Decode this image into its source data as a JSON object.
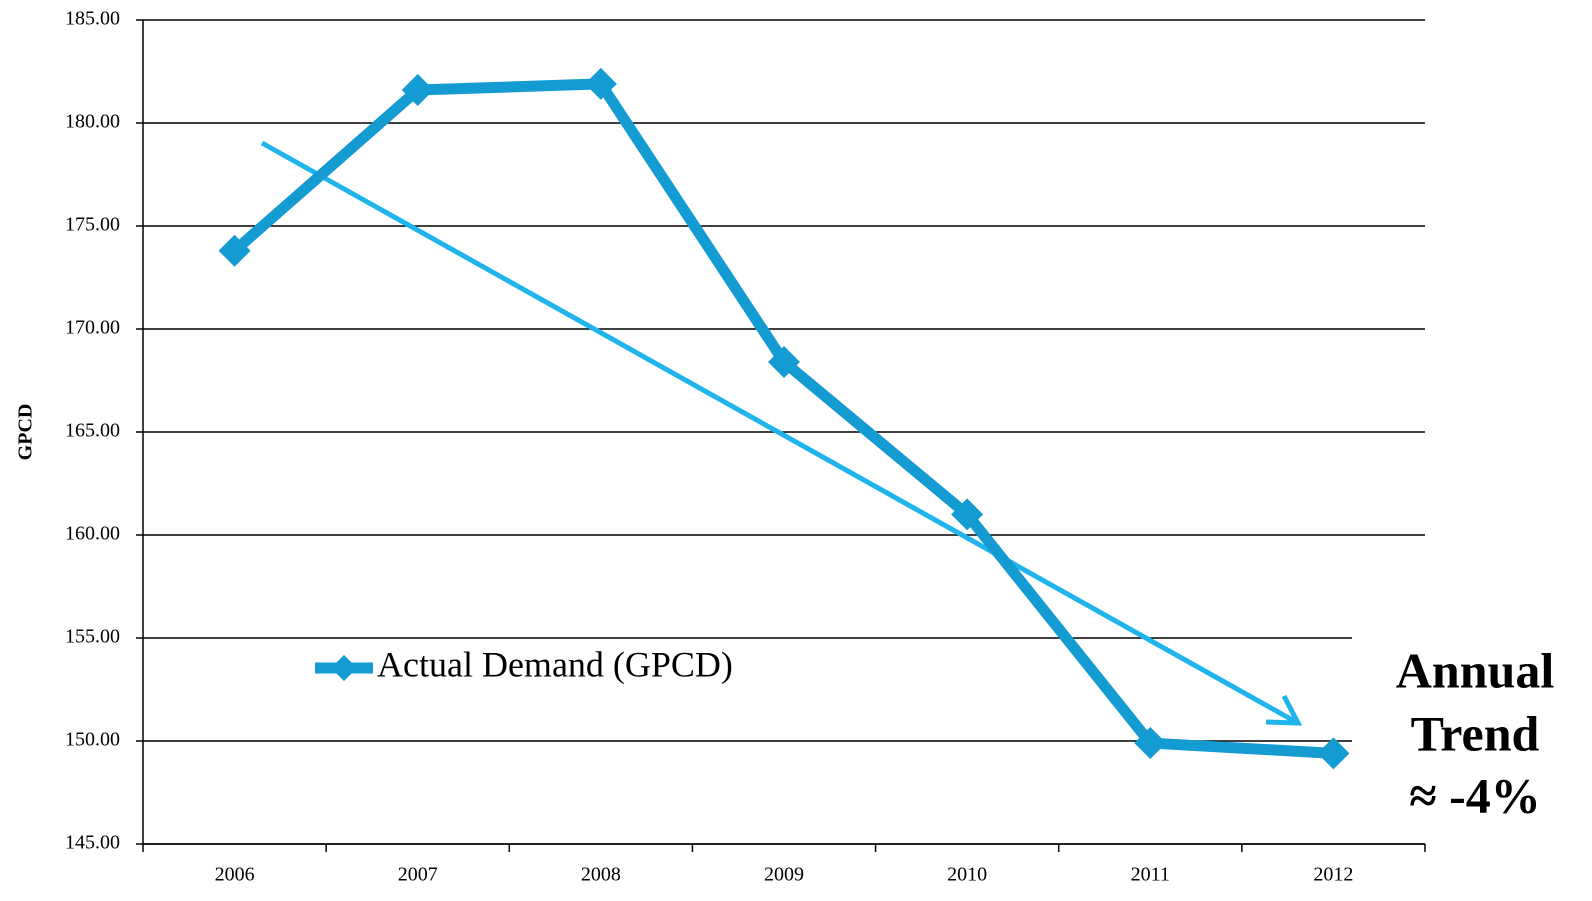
{
  "chart_data": {
    "type": "line",
    "y_label": "GPCD",
    "categories": [
      "2006",
      "2007",
      "2008",
      "2009",
      "2010",
      "2011",
      "2012"
    ],
    "series": [
      {
        "name": "Actual Demand (GPCD)",
        "color": "#149bd2",
        "values": [
          173.8,
          181.6,
          181.9,
          168.4,
          161.0,
          149.9,
          149.4
        ]
      }
    ],
    "ylim": [
      145,
      185
    ],
    "yticks": [
      {
        "value": 145,
        "label": "145.00"
      },
      {
        "value": 150,
        "label": "150.00"
      },
      {
        "value": 155,
        "label": "155.00"
      },
      {
        "value": 160,
        "label": "160.00"
      },
      {
        "value": 165,
        "label": "165.00"
      },
      {
        "value": 170,
        "label": "170.00"
      },
      {
        "value": 175,
        "label": "175.00"
      },
      {
        "value": 180,
        "label": "180.00"
      },
      {
        "value": 185,
        "label": "185.00"
      }
    ],
    "grid": true,
    "annotation": [
      "Annual",
      "Trend",
      "≈ -4%"
    ]
  }
}
